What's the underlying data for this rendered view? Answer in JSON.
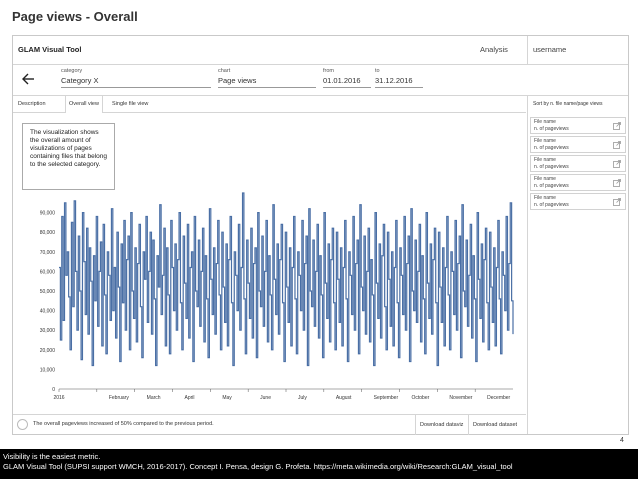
{
  "slide_title": "Page views - Overall",
  "app": {
    "title": "GLAM Visual Tool",
    "nav": {
      "analysis": "Analysis",
      "username": "username"
    }
  },
  "filters": {
    "back_icon": "arrow-left-icon",
    "category": {
      "label": "category",
      "value": "Category X"
    },
    "chart": {
      "label": "chart",
      "value": "Page views"
    },
    "from": {
      "label": "from",
      "value": "01.01.2016"
    },
    "to": {
      "label": "to",
      "value": "31.12.2016"
    }
  },
  "tabs": [
    {
      "label": "Description",
      "active": false
    },
    {
      "label": "Overall view",
      "active": true
    },
    {
      "label": "Single file view",
      "active": false
    }
  ],
  "description": "The visualization shows the overall amount of visulizations of pages containing files that belong to the selected category.",
  "sidebar": {
    "sort_label": "Sort by n. file name/page views",
    "items": [
      {
        "file": "File name",
        "views": "n. of pageviews",
        "icon": "external-link-icon"
      },
      {
        "file": "File name",
        "views": "n. of pageviews",
        "icon": "external-link-icon"
      },
      {
        "file": "File name",
        "views": "n. of pageviews",
        "icon": "external-link-icon"
      },
      {
        "file": "File name",
        "views": "n. of pageviews",
        "icon": "external-link-icon"
      },
      {
        "file": "File name",
        "views": "n. of pageviews",
        "icon": "external-link-icon"
      }
    ]
  },
  "bottom": {
    "summary": "The overall pageviews increased of 50% compared to the previous period.",
    "download_dataviz": "Download dataviz",
    "download_dataset": "Download dataset"
  },
  "page_number": "4",
  "caption": {
    "line1": "Visibility is the easiest metric.",
    "line2": "GLAM Visual Tool (SUPSI support WMCH, 2016-2017). Concept I. Pensa, design G. Profeta. https://meta.wikimedia.org/wiki/Research:GLAM_visual_tool"
  },
  "chart_data": {
    "type": "line",
    "color": "#4a6fa5",
    "ylim": [
      0,
      100000
    ],
    "yticks": [
      "0",
      "10,000",
      "20,000",
      "30,000",
      "40,000",
      "50,000",
      "60,000",
      "70,000",
      "80,000",
      "90,000"
    ],
    "ytick_values": [
      0,
      10000,
      20000,
      30000,
      40000,
      50000,
      60000,
      70000,
      80000,
      90000
    ],
    "xticks": [
      "2016",
      "February",
      "March",
      "April",
      "May",
      "June",
      "July",
      "August",
      "September",
      "October",
      "November",
      "December"
    ],
    "x_start": "2016-01-01",
    "x_end": "2016-12-31",
    "values": [
      62000,
      25000,
      88000,
      35000,
      95000,
      58000,
      70000,
      47000,
      20000,
      85000,
      42000,
      96000,
      60000,
      30000,
      78000,
      50000,
      15000,
      90000,
      65000,
      38000,
      82000,
      28000,
      72000,
      55000,
      12000,
      68000,
      45000,
      88000,
      32000,
      60000,
      75000,
      22000,
      84000,
      48000,
      18000,
      70000,
      58000,
      35000,
      92000,
      40000,
      62000,
      26000,
      80000,
      52000,
      14000,
      74000,
      44000,
      86000,
      30000,
      66000,
      78000,
      20000,
      90000,
      50000,
      36000,
      72000,
      24000,
      64000,
      84000,
      42000,
      16000,
      70000,
      56000,
      88000,
      34000,
      60000,
      80000,
      28000,
      76000,
      46000,
      12000,
      68000,
      52000,
      94000,
      38000,
      58000,
      82000,
      22000,
      72000,
      48000,
      18000,
      86000,
      62000,
      40000,
      74000,
      30000,
      66000,
      90000,
      44000,
      20000,
      78000,
      54000,
      36000,
      84000,
      26000,
      62000,
      70000,
      14000,
      88000,
      50000,
      42000,
      76000,
      32000,
      60000,
      82000,
      24000,
      68000,
      46000,
      16000,
      92000,
      56000,
      38000,
      72000,
      28000,
      64000,
      86000,
      48000,
      20000,
      80000,
      52000,
      34000,
      74000,
      22000,
      66000,
      88000,
      44000,
      12000,
      70000,
      58000,
      40000,
      84000,
      30000,
      62000,
      100000,
      46000,
      18000,
      76000,
      54000,
      36000,
      82000,
      26000,
      64000,
      72000,
      16000,
      90000,
      50000,
      42000,
      78000,
      32000,
      60000,
      86000,
      24000,
      68000,
      48000,
      20000,
      94000,
      56000,
      38000,
      74000,
      28000,
      66000,
      84000,
      44000,
      14000,
      80000,
      52000,
      34000,
      72000,
      22000,
      62000,
      88000,
      46000,
      18000,
      70000,
      58000,
      40000,
      86000,
      30000,
      64000,
      78000,
      12000,
      92000,
      50000,
      42000,
      76000,
      32000,
      60000,
      84000,
      26000,
      68000,
      48000,
      16000,
      90000,
      54000,
      36000,
      74000,
      24000,
      66000,
      82000,
      44000,
      20000,
      80000,
      56000,
      34000,
      72000,
      22000,
      62000,
      86000,
      46000,
      14000,
      70000,
      58000,
      38000,
      88000,
      30000,
      64000,
      76000,
      18000,
      94000,
      52000,
      40000,
      78000,
      28000,
      60000,
      82000,
      24000,
      66000,
      48000,
      12000,
      90000,
      54000,
      36000,
      74000,
      26000,
      68000,
      84000,
      42000,
      20000,
      80000,
      56000,
      32000,
      70000,
      22000,
      62000,
      86000,
      44000,
      16000,
      72000,
      58000,
      38000,
      88000,
      30000,
      64000,
      78000,
      14000,
      92000,
      50000,
      40000,
      76000,
      34000,
      60000,
      84000,
      24000,
      68000,
      46000,
      18000,
      90000,
      54000,
      36000,
      74000,
      28000,
      66000,
      82000,
      44000,
      12000,
      80000,
      52000,
      34000,
      72000,
      22000,
      62000,
      88000,
      48000,
      20000,
      70000,
      60000,
      38000,
      86000,
      30000,
      64000,
      78000,
      16000,
      94000,
      50000,
      42000,
      76000,
      32000,
      58000,
      84000,
      26000,
      68000,
      46000,
      14000,
      90000,
      56000,
      36000,
      74000,
      24000,
      66000,
      82000,
      44000,
      20000,
      80000,
      52000,
      34000,
      72000,
      22000,
      62000,
      86000,
      46000,
      18000,
      70000,
      58000,
      40000,
      88000,
      30000,
      64000,
      95000,
      45000,
      28000
    ]
  }
}
